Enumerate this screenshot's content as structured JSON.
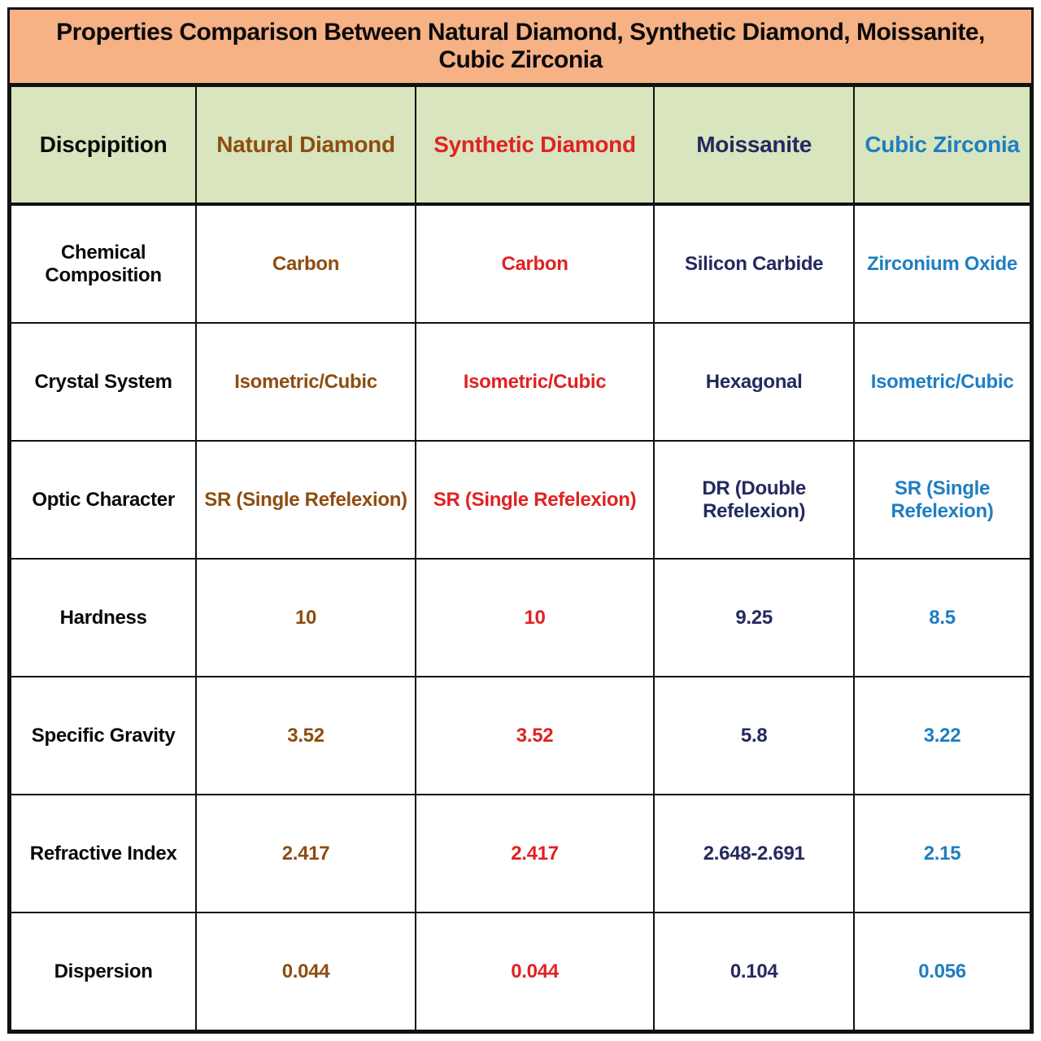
{
  "colors": {
    "label": "#0a0a0a",
    "natural_diamond": "#8e4d10",
    "synthetic_diamond": "#e02222",
    "moissanite": "#242a5e",
    "cubic_zirconia": "#1e7ec2",
    "title_bg": "#f6b185",
    "header_bg": "#d8e5be"
  },
  "chart_data": {
    "type": "table",
    "title": "Properties Comparison Between Natural Diamond, Synthetic Diamond, Moissanite, Cubic Zirconia",
    "columns": [
      {
        "label": "Discpipition",
        "color_key": "label"
      },
      {
        "label": "Natural Diamond",
        "color_key": "natural_diamond"
      },
      {
        "label": "Synthetic Diamond",
        "color_key": "synthetic_diamond"
      },
      {
        "label": "Moissanite",
        "color_key": "moissanite"
      },
      {
        "label": "Cubic Zirconia",
        "color_key": "cubic_zirconia"
      }
    ],
    "rows": [
      {
        "label": "Chemical Composition",
        "values": [
          "Carbon",
          "Carbon",
          "Silicon Carbide",
          "Zirconium Oxide"
        ]
      },
      {
        "label": "Crystal System",
        "values": [
          "Isometric/Cubic",
          "Isometric/Cubic",
          "Hexagonal",
          "Isometric/Cubic"
        ]
      },
      {
        "label": "Optic Character",
        "values": [
          "SR (Single Refelexion)",
          "SR (Single Refelexion)",
          "DR (Double Refelexion)",
          "SR (Single Refelexion)"
        ]
      },
      {
        "label": "Hardness",
        "values": [
          "10",
          "10",
          "9.25",
          "8.5"
        ]
      },
      {
        "label": "Specific Gravity",
        "values": [
          "3.52",
          "3.52",
          "5.8",
          "3.22"
        ]
      },
      {
        "label": "Refractive Index",
        "values": [
          "2.417",
          "2.417",
          "2.648-2.691",
          "2.15"
        ]
      },
      {
        "label": "Dispersion",
        "values": [
          "0.044",
          "0.044",
          "0.104",
          "0.056"
        ]
      }
    ]
  }
}
